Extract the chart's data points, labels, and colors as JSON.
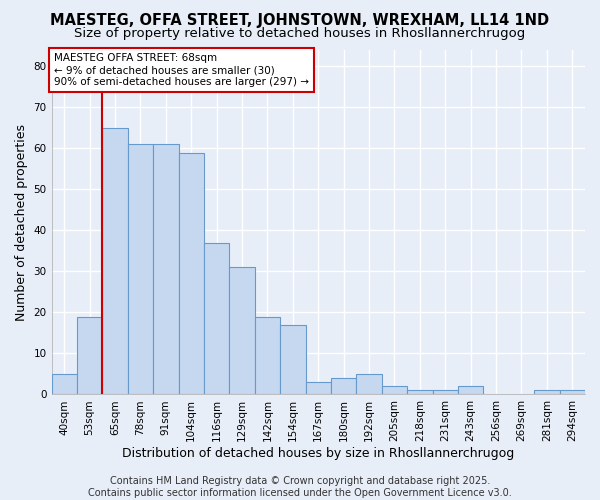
{
  "title": "MAESTEG, OFFA STREET, JOHNSTOWN, WREXHAM, LL14 1ND",
  "subtitle": "Size of property relative to detached houses in Rhosllannerchrugog",
  "xlabel": "Distribution of detached houses by size in Rhosllannerchrugog",
  "ylabel": "Number of detached properties",
  "categories": [
    "40sqm",
    "53sqm",
    "65sqm",
    "78sqm",
    "91sqm",
    "104sqm",
    "116sqm",
    "129sqm",
    "142sqm",
    "154sqm",
    "167sqm",
    "180sqm",
    "192sqm",
    "205sqm",
    "218sqm",
    "231sqm",
    "243sqm",
    "256sqm",
    "269sqm",
    "281sqm",
    "294sqm"
  ],
  "values": [
    5,
    19,
    65,
    61,
    61,
    59,
    37,
    31,
    19,
    17,
    3,
    4,
    5,
    2,
    1,
    1,
    2,
    0,
    0,
    1,
    1
  ],
  "bar_color": "#c5d8f0",
  "bar_edge_color": "#6699cc",
  "vline_x_index": 2,
  "vline_color": "#cc0000",
  "annotation_text": "MAESTEG OFFA STREET: 68sqm\n← 9% of detached houses are smaller (30)\n90% of semi-detached houses are larger (297) →",
  "annotation_box_color": "white",
  "annotation_box_edge": "#cc0000",
  "footer": "Contains HM Land Registry data © Crown copyright and database right 2025.\nContains public sector information licensed under the Open Government Licence v3.0.",
  "ylim": [
    0,
    84
  ],
  "yticks": [
    0,
    10,
    20,
    30,
    40,
    50,
    60,
    70,
    80
  ],
  "bg_color": "#e8eef8",
  "grid_color": "#ffffff",
  "title_fontsize": 10.5,
  "subtitle_fontsize": 9.5,
  "axis_label_fontsize": 9,
  "tick_fontsize": 7.5,
  "annotation_fontsize": 7.5,
  "footer_fontsize": 7
}
